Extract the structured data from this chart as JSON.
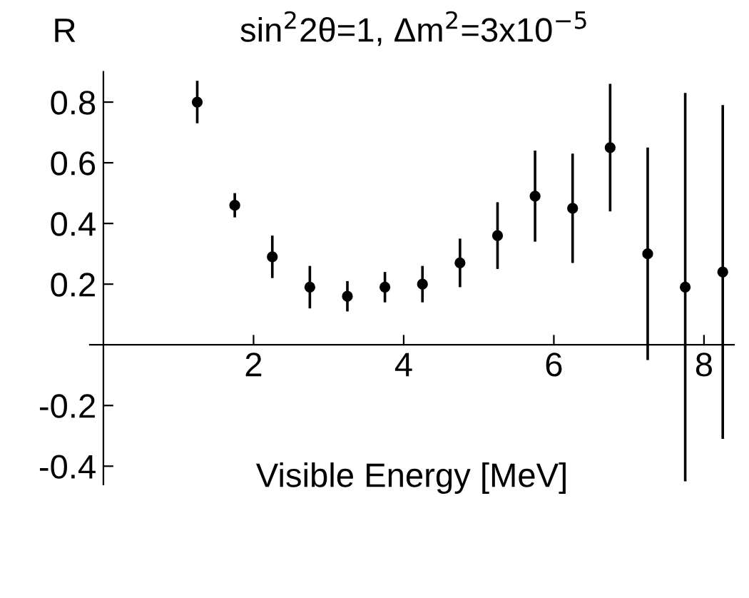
{
  "chart_data": {
    "type": "scatter",
    "title": "sin$^{2}$2θ=1, Δm$^{2}$=3x10$^{−5}$",
    "ylabel": "R",
    "xlabel": "Visible Energy [MeV]",
    "x": [
      1.25,
      1.75,
      2.25,
      2.75,
      3.25,
      3.75,
      4.25,
      4.75,
      5.25,
      5.75,
      6.25,
      6.75,
      7.25,
      7.75,
      8.25
    ],
    "series": [
      {
        "color": "#000000",
        "values": [
          0.8,
          0.46,
          0.29,
          0.19,
          0.16,
          0.19,
          0.2,
          0.27,
          0.36,
          0.49,
          0.45,
          0.65,
          0.3,
          0.19,
          0.24
        ],
        "errors": [
          0.07,
          0.04,
          0.07,
          0.07,
          0.05,
          0.05,
          0.06,
          0.08,
          0.11,
          0.15,
          0.18,
          0.21,
          0.35,
          0.64,
          0.55
        ]
      }
    ],
    "xlim": [
      -0.18,
      8.4
    ],
    "ylim": [
      -0.46,
      0.9
    ],
    "xticks": [
      2,
      4,
      6,
      8
    ],
    "yticks": [
      -0.4,
      -0.2,
      0.2,
      0.4,
      0.6,
      0.8
    ],
    "marker": "circle",
    "grid": false,
    "legend": false
  }
}
